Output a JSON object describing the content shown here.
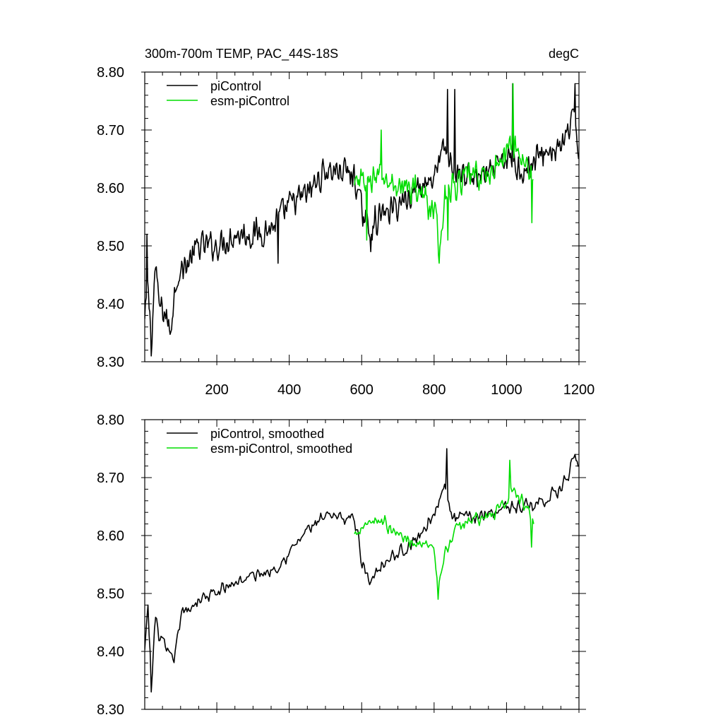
{
  "header": {
    "title": "300m-700m TEMP, PAC_44S-18S",
    "units": "degC"
  },
  "chart_data": [
    {
      "type": "line",
      "title": "300m-700m TEMP, PAC_44S-18S",
      "ylabel": "degC",
      "xlabel": "",
      "xlim": [
        1,
        1200
      ],
      "ylim": [
        8.3,
        8.8
      ],
      "xtick_labels": [
        "200",
        "400",
        "600",
        "800",
        "1000",
        "1200"
      ],
      "ytick_labels": [
        "8.80",
        "8.70",
        "8.60",
        "8.50",
        "8.40",
        "8.30"
      ],
      "legend": [
        "piControl",
        "esm-piControl"
      ],
      "legend_position": "top-left",
      "series": [
        {
          "name": "piControl",
          "color": "#000000",
          "x_start": 1,
          "x_end": 1200,
          "keypoints": [
            [
              1,
              8.37
            ],
            [
              10,
              8.43
            ],
            [
              20,
              8.33
            ],
            [
              30,
              8.47
            ],
            [
              40,
              8.4
            ],
            [
              60,
              8.38
            ],
            [
              70,
              8.35
            ],
            [
              90,
              8.45
            ],
            [
              120,
              8.47
            ],
            [
              150,
              8.5
            ],
            [
              200,
              8.5
            ],
            [
              250,
              8.52
            ],
            [
              300,
              8.52
            ],
            [
              350,
              8.53
            ],
            [
              400,
              8.57
            ],
            [
              450,
              8.59
            ],
            [
              500,
              8.63
            ],
            [
              550,
              8.63
            ],
            [
              580,
              8.62
            ],
            [
              600,
              8.56
            ],
            [
              620,
              8.53
            ],
            [
              650,
              8.55
            ],
            [
              700,
              8.57
            ],
            [
              750,
              8.6
            ],
            [
              800,
              8.62
            ],
            [
              830,
              8.67
            ],
            [
              850,
              8.63
            ],
            [
              900,
              8.62
            ],
            [
              950,
              8.62
            ],
            [
              1000,
              8.65
            ],
            [
              1050,
              8.63
            ],
            [
              1100,
              8.66
            ],
            [
              1150,
              8.67
            ],
            [
              1190,
              8.72
            ],
            [
              1200,
              8.66
            ]
          ],
          "noise": 0.03,
          "spikes": [
            [
              8,
              8.52
            ],
            [
              20,
              8.31
            ],
            [
              838,
              8.77
            ],
            [
              858,
              8.77
            ],
            [
              1018,
              8.78
            ],
            [
              1190,
              8.78
            ],
            [
              370,
              8.47
            ],
            [
              625,
              8.49
            ]
          ]
        },
        {
          "name": "esm-piControl",
          "color": "#00dd00",
          "x_start": 580,
          "x_end": 1075,
          "keypoints": [
            [
              580,
              8.6
            ],
            [
              600,
              8.61
            ],
            [
              650,
              8.62
            ],
            [
              700,
              8.6
            ],
            [
              750,
              8.6
            ],
            [
              800,
              8.56
            ],
            [
              815,
              8.5
            ],
            [
              830,
              8.58
            ],
            [
              850,
              8.6
            ],
            [
              900,
              8.62
            ],
            [
              950,
              8.62
            ],
            [
              1000,
              8.66
            ],
            [
              1020,
              8.68
            ],
            [
              1050,
              8.64
            ],
            [
              1075,
              8.62
            ]
          ],
          "noise": 0.03,
          "spikes": [
            [
              615,
              8.51
            ],
            [
              655,
              8.7
            ],
            [
              815,
              8.47
            ],
            [
              838,
              8.51
            ],
            [
              1018,
              8.78
            ],
            [
              1070,
              8.54
            ]
          ]
        }
      ]
    },
    {
      "type": "line",
      "title": "",
      "ylabel": "",
      "xlabel": "",
      "xlim": [
        1,
        1200
      ],
      "ylim": [
        8.3,
        8.8
      ],
      "xtick_labels": [],
      "ytick_labels": [
        "8.80",
        "8.70",
        "8.60",
        "8.50",
        "8.40",
        "8.30"
      ],
      "legend": [
        "piControl, smoothed",
        "esm-piControl, smoothed"
      ],
      "legend_position": "top-left",
      "series": [
        {
          "name": "piControl, smoothed",
          "color": "#000000",
          "x_start": 1,
          "x_end": 1200,
          "keypoints": [
            [
              1,
              8.4
            ],
            [
              10,
              8.47
            ],
            [
              20,
              8.34
            ],
            [
              30,
              8.46
            ],
            [
              40,
              8.43
            ],
            [
              60,
              8.4
            ],
            [
              80,
              8.38
            ],
            [
              100,
              8.46
            ],
            [
              150,
              8.49
            ],
            [
              200,
              8.5
            ],
            [
              250,
              8.52
            ],
            [
              300,
              8.53
            ],
            [
              350,
              8.54
            ],
            [
              400,
              8.57
            ],
            [
              450,
              8.61
            ],
            [
              500,
              8.63
            ],
            [
              550,
              8.63
            ],
            [
              580,
              8.63
            ],
            [
              600,
              8.56
            ],
            [
              620,
              8.52
            ],
            [
              650,
              8.55
            ],
            [
              700,
              8.57
            ],
            [
              750,
              8.59
            ],
            [
              800,
              8.64
            ],
            [
              830,
              8.68
            ],
            [
              850,
              8.63
            ],
            [
              900,
              8.63
            ],
            [
              950,
              8.64
            ],
            [
              1000,
              8.65
            ],
            [
              1050,
              8.65
            ],
            [
              1100,
              8.66
            ],
            [
              1150,
              8.68
            ],
            [
              1190,
              8.73
            ],
            [
              1200,
              8.7
            ]
          ],
          "noise": 0.015,
          "spikes": [
            [
              10,
              8.48
            ],
            [
              20,
              8.33
            ],
            [
              835,
              8.75
            ],
            [
              1190,
              8.74
            ]
          ]
        },
        {
          "name": "esm-piControl, smoothed",
          "color": "#00dd00",
          "x_start": 580,
          "x_end": 1075,
          "keypoints": [
            [
              580,
              8.6
            ],
            [
              600,
              8.62
            ],
            [
              650,
              8.63
            ],
            [
              700,
              8.6
            ],
            [
              750,
              8.59
            ],
            [
              800,
              8.57
            ],
            [
              812,
              8.5
            ],
            [
              830,
              8.57
            ],
            [
              850,
              8.6
            ],
            [
              900,
              8.63
            ],
            [
              950,
              8.63
            ],
            [
              1000,
              8.66
            ],
            [
              1020,
              8.68
            ],
            [
              1050,
              8.65
            ],
            [
              1075,
              8.62
            ]
          ],
          "noise": 0.015,
          "spikes": [
            [
              812,
              8.49
            ],
            [
              1010,
              8.73
            ],
            [
              1070,
              8.58
            ]
          ]
        }
      ]
    }
  ]
}
